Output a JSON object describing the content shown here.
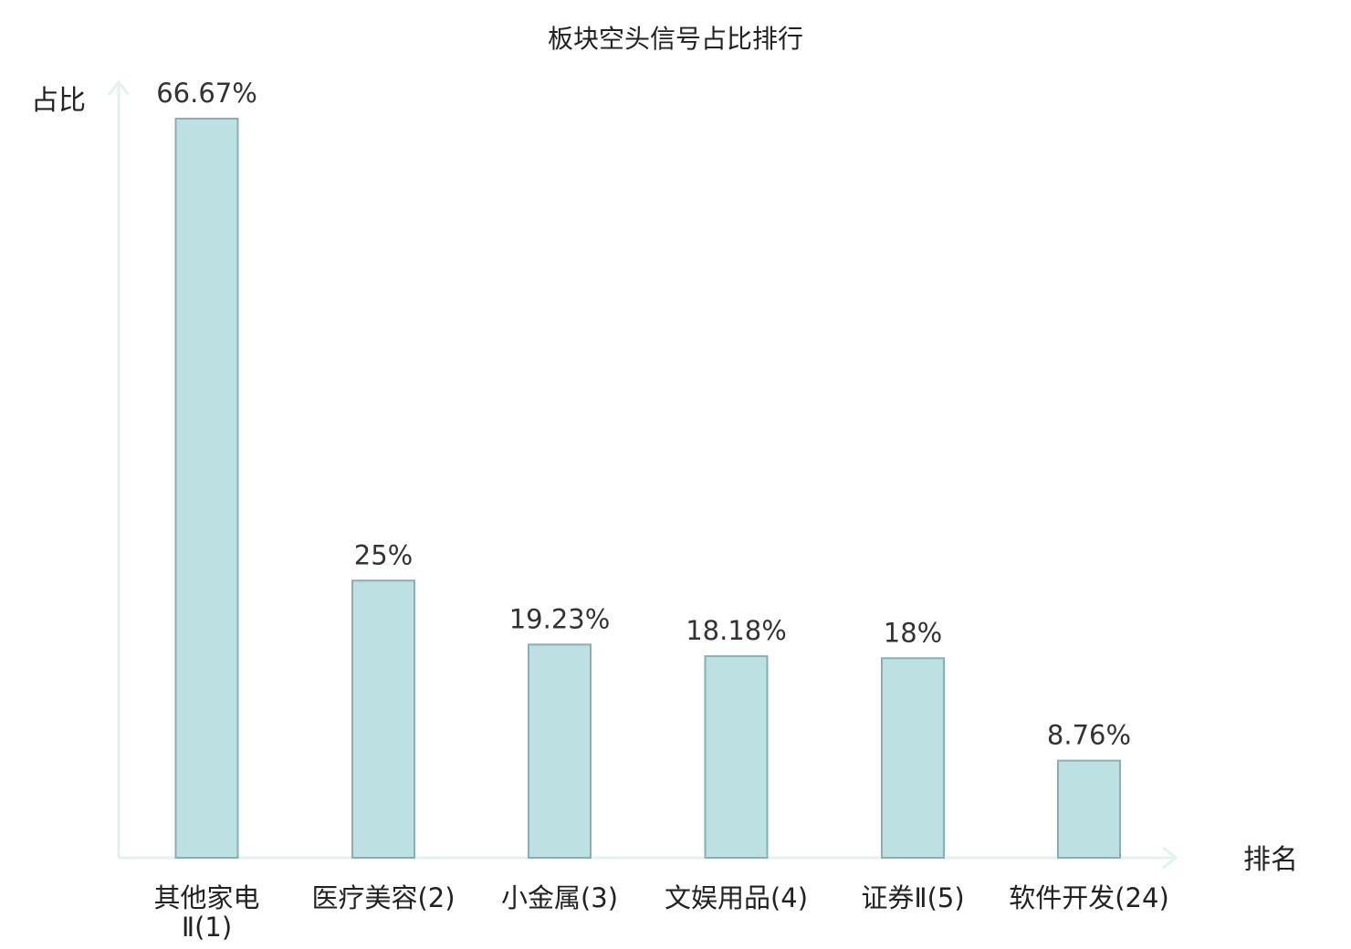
{
  "chart_data": {
    "type": "bar",
    "title": "板块空头信号占比排行",
    "ylabel": "占比",
    "xlabel": "排名",
    "ylim": [
      0,
      70
    ],
    "grid": false,
    "legend": "none",
    "categories": [
      {
        "name": "其他家电Ⅱ",
        "rank": "(1)",
        "highlight": false
      },
      {
        "name": "医疗美容",
        "rank": "(2)",
        "highlight": false
      },
      {
        "name": "小金属",
        "rank": "(3)",
        "highlight": false
      },
      {
        "name": "文娱用品",
        "rank": "(4)",
        "highlight": false
      },
      {
        "name": "证券Ⅱ",
        "rank": "(5)",
        "highlight": false
      },
      {
        "name": "软件开发",
        "rank": "(24)",
        "highlight": true
      }
    ],
    "values": [
      66.67,
      25,
      19.23,
      18.18,
      18,
      8.76
    ],
    "value_labels": [
      "66.67%",
      "25%",
      "19.23%",
      "18.18%",
      "18%",
      "8.76%"
    ],
    "colors": {
      "bar_fill": "#bde0e3",
      "bar_stroke": "#8aaeb1",
      "axis": "#e0f3ef",
      "highlight_text": "#e0201b",
      "text": "#222222"
    }
  }
}
